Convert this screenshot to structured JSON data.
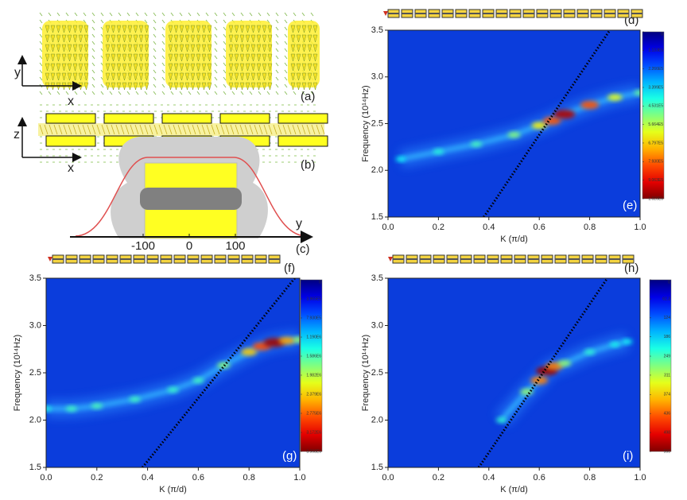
{
  "schematic": {
    "a": {
      "axis_labels": [
        "y",
        "x"
      ],
      "label": "(a)"
    },
    "b": {
      "axis_labels": [
        "z",
        "x"
      ],
      "label": "(b)"
    },
    "c": {
      "axis_label": "y",
      "ticks": [
        -100,
        0,
        100
      ],
      "label": "(c)"
    }
  },
  "chart_data": [
    {
      "type": "heatmap",
      "panel_labels": [
        "(d)",
        "(e)"
      ],
      "xlabel": "K (π/d)",
      "ylabel": "Frequency (10¹⁴Hz)",
      "xlim": [
        0,
        1
      ],
      "ylim": [
        1.5,
        3.5
      ],
      "xticks": [
        {
          "value": 0,
          "label": "0.0"
        },
        0.2,
        0.4,
        0.6,
        0.8,
        {
          "value": 1,
          "label": "1.0"
        }
      ],
      "yticks": [
        1.5,
        {
          "value": 2,
          "label": "2.0"
        },
        2.5,
        {
          "value": 3,
          "label": "3.0"
        },
        3.5
      ],
      "clim": [
        0,
        1020000
      ],
      "cticks": [
        0,
        {
          "value": 113300,
          "label": "1.133E5"
        },
        {
          "value": 226600,
          "label": "2.266E5"
        },
        {
          "value": 339900,
          "label": "3.399E5"
        },
        {
          "value": 453100,
          "label": "4.531E5"
        },
        {
          "value": 566400,
          "label": "5.664E5"
        },
        {
          "value": 679700,
          "label": "6.797E5"
        },
        {
          "value": 793000,
          "label": "7.930E5"
        },
        {
          "value": 906300,
          "label": "9.063E5"
        },
        {
          "value": 1020000,
          "label": "1.020E6"
        }
      ],
      "band": {
        "x": [
          0.05,
          0.2,
          0.35,
          0.5,
          0.6,
          0.65,
          0.7,
          0.8,
          0.9,
          1.0
        ],
        "y": [
          2.12,
          2.2,
          2.28,
          2.38,
          2.48,
          2.53,
          2.6,
          2.7,
          2.78,
          2.83
        ],
        "intensity": [
          50000,
          100000,
          150000,
          250000,
          450000,
          700000,
          950000,
          700000,
          400000,
          200000
        ]
      },
      "light_line": {
        "x": [
          0.38,
          0.88
        ],
        "y": [
          1.5,
          3.5
        ]
      }
    },
    {
      "type": "heatmap",
      "panel_labels": [
        "(f)",
        "(g)"
      ],
      "xlabel": "K (π/d)",
      "ylabel": "Frequency (10¹⁴Hz)",
      "xlim": [
        0,
        1
      ],
      "ylim": [
        1.5,
        3.5
      ],
      "xticks": [
        {
          "value": 0,
          "label": "0.0"
        },
        0.2,
        0.4,
        0.6,
        0.8,
        {
          "value": 1,
          "label": "1.0"
        }
      ],
      "yticks": [
        1.5,
        {
          "value": 2,
          "label": "2.0"
        },
        2.5,
        {
          "value": 3,
          "label": "3.0"
        },
        3.5
      ],
      "clim": [
        0,
        3568000
      ],
      "cticks": [
        0,
        {
          "value": 396500,
          "label": "3.965E5"
        },
        {
          "value": 793000,
          "label": "7.930E5"
        },
        {
          "value": 1190000,
          "label": "1.190E6"
        },
        {
          "value": 1586000,
          "label": "1.586E6"
        },
        {
          "value": 1982000,
          "label": "1.982E6"
        },
        {
          "value": 2379000,
          "label": "2.379E6"
        },
        {
          "value": 2775000,
          "label": "2.775E6"
        },
        {
          "value": 3172000,
          "label": "3.172E6"
        },
        {
          "value": 3568000,
          "label": "3.568E6"
        }
      ],
      "band": {
        "x": [
          0.0,
          0.1,
          0.2,
          0.35,
          0.5,
          0.6,
          0.7,
          0.8,
          0.85,
          0.9,
          0.95,
          1.0
        ],
        "y": [
          2.12,
          2.12,
          2.15,
          2.22,
          2.32,
          2.42,
          2.58,
          2.72,
          2.78,
          2.82,
          2.84,
          2.85
        ],
        "intensity": [
          300000,
          500000,
          550000,
          500000,
          450000,
          500000,
          900000,
          1800000,
          2500000,
          3400000,
          2000000,
          1000000
        ]
      },
      "light_line": {
        "x": [
          0.38,
          0.98
        ],
        "y": [
          1.5,
          3.5
        ]
      }
    },
    {
      "type": "heatmap",
      "panel_labels": [
        "(h)",
        "(i)"
      ],
      "xlabel": "K (π/d)",
      "ylabel": "Frequency (10¹⁴Hz)",
      "xlim": [
        0,
        1
      ],
      "ylim": [
        1.5,
        3.5
      ],
      "xticks": [
        {
          "value": 0,
          "label": "0.0"
        },
        0.2,
        0.4,
        0.6,
        0.8,
        {
          "value": 1,
          "label": "1.0"
        }
      ],
      "yticks": [
        1.5,
        {
          "value": 2,
          "label": "2.0"
        },
        2.5,
        {
          "value": 3,
          "label": "3.0"
        },
        3.5
      ],
      "clim": [
        0,
        560
      ],
      "cticks": [
        0,
        62.3,
        124,
        186,
        249,
        311,
        374,
        436,
        498,
        560
      ],
      "band": {
        "x": [
          0.45,
          0.55,
          0.6,
          0.63,
          0.66,
          0.7,
          0.8,
          0.9,
          0.95
        ],
        "y": [
          2.0,
          2.3,
          2.42,
          2.52,
          2.57,
          2.6,
          2.72,
          2.8,
          2.83
        ],
        "intensity": [
          60,
          150,
          350,
          540,
          350,
          150,
          60,
          40,
          30
        ]
      },
      "light_line": {
        "x": [
          0.36,
          0.87
        ],
        "y": [
          1.5,
          3.5
        ]
      }
    }
  ]
}
